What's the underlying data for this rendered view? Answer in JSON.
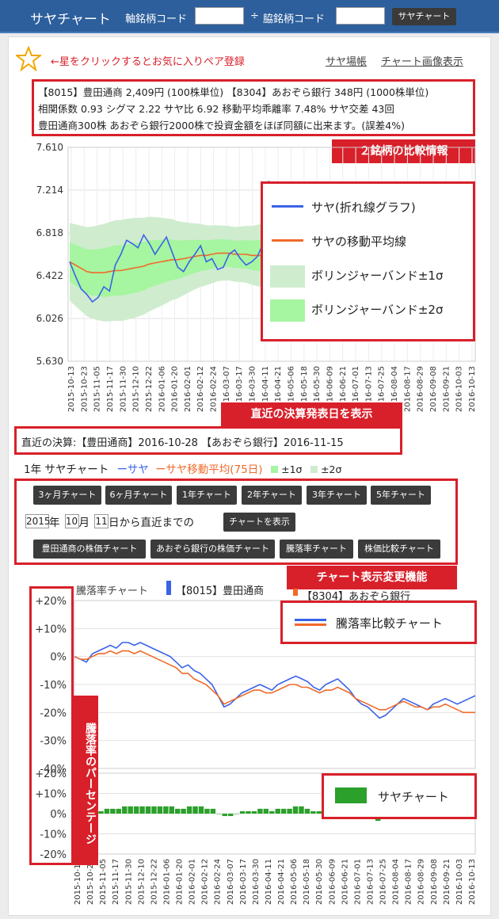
{
  "header": {
    "title": "サヤチャート",
    "base_label": "軸銘柄コード",
    "divider": "÷",
    "side_label": "脇銘柄コード",
    "submit": "サヤチャート"
  },
  "favorite": {
    "text": "←星をクリックするとお気に入りペア登録"
  },
  "links": {
    "ledger": "サヤ場帳",
    "image": "チャート画像表示"
  },
  "info": {
    "line1": "【8015】豊田通商 2,409円 (100株単位) 【8304】あおぞら銀行 348円 (1000株単位)",
    "line2": "相関係数 0.93 シグマ 2.22 サヤ比 6.92 移動平均乖離率 7.48% サヤ交差 43回",
    "line3": "豊田通商300株 あおぞら銀行2000株で投資金額をほぼ同額に出来ます。(誤差4%)",
    "label": "２銘柄の比較情報"
  },
  "main_chart": {
    "yticks": [
      "7.610",
      "7.214",
      "6.818",
      "6.422",
      "6.026",
      "5.630"
    ],
    "xticks": [
      "2015-10-13",
      "2015-10-23",
      "2015-11-05",
      "2015-11-17",
      "2015-11-30",
      "2015-12-10",
      "2015-12-22",
      "2016-01-06",
      "2016-01-20",
      "2016-02-01",
      "2016-02-12",
      "2016-02-24",
      "2016-03-07",
      "2016-03-17",
      "2016-03-30",
      "2016-04-11",
      "2016-04-21",
      "2016-05-06",
      "2016-05-18",
      "2016-05-30",
      "2016-06-09",
      "2016-06-21",
      "2016-07-01",
      "2016-07-13",
      "2016-07-25",
      "2016-08-04",
      "2016-08-17",
      "2016-08-29",
      "2016-09-08",
      "2016-09-21",
      "2016-10-03",
      "2016-10-13"
    ],
    "legend": [
      {
        "label": "サヤ(折れ線グラフ)",
        "color": "#3a63e6"
      },
      {
        "label": "サヤの移動平均線",
        "color": "#f06a2a"
      },
      {
        "label": "ボリンジャーバンド±1σ",
        "color": "#cfeccf"
      },
      {
        "label": "ボリンジャーバンド±2σ",
        "color": "#a6f5a0"
      }
    ]
  },
  "earnings": {
    "label": "直近の決算発表日を表示",
    "text": "直近の決算:【豊田通商】2016-10-28 【あおぞら銀行】2016-11-15"
  },
  "legend_line": {
    "period": "1年 サヤチャート",
    "saya": "ーサヤ",
    "ma": "ーサヤ移動平均(75日)",
    "s1": "±1σ",
    "s2": "±2σ"
  },
  "controls": {
    "period_buttons": [
      "3ヶ月チャート",
      "6ヶ月チャート",
      "1年チャート",
      "2年チャート",
      "3年チャート",
      "5年チャート"
    ],
    "year": "2015",
    "year_unit": "年",
    "month": "10",
    "month_unit": "月",
    "day": "11",
    "day_suffix": "日から直近までの",
    "show": "チャートを表示",
    "chart_buttons": [
      "豊田通商の株価チャート",
      "あおぞら銀行の株価チャート",
      "騰落率チャート",
      "株価比較チャート"
    ],
    "label": "チャート表示変更機能"
  },
  "rate_chart": {
    "title": "騰落率チャート",
    "series1": "【8015】豊田通商",
    "series2": "【8304】あおぞら銀行",
    "yticks": [
      "+20%",
      "+10%",
      "0%",
      "-10%",
      "-20%",
      "-30%",
      "-40%"
    ],
    "legend": "騰落率比較チャート",
    "side_label": "騰落率のパーセンテージ"
  },
  "saya_chart": {
    "yticks": [
      "+20%",
      "+10%",
      "0%",
      "-10%",
      "-20%"
    ],
    "legend": "サヤチャート",
    "xticks": [
      "2015-10-13",
      "2015-10-23",
      "2015-11-05",
      "2015-11-17",
      "2015-11-30",
      "2015-12-10",
      "2015-12-22",
      "2016-01-06",
      "2016-01-20",
      "2016-02-01",
      "2016-02-12",
      "2016-02-24",
      "2016-03-07",
      "2016-03-17",
      "2016-03-30",
      "2016-04-11",
      "2016-04-21",
      "2016-05-06",
      "2016-05-18",
      "2016-05-30",
      "2016-06-09",
      "2016-06-21",
      "2016-07-01",
      "2016-07-13",
      "2016-07-25",
      "2016-08-04",
      "2016-08-17",
      "2016-08-29",
      "2016-09-08",
      "2016-09-21",
      "2016-10-03",
      "2016-10-13"
    ]
  },
  "chart_data": [
    {
      "type": "line",
      "ylim": [
        5.63,
        7.61
      ],
      "series": [
        {
          "values": [
            6.55,
            6.42,
            6.3,
            6.25,
            6.18,
            6.22,
            6.32,
            6.28,
            6.52,
            6.62,
            6.75,
            6.72,
            6.68,
            6.8,
            6.72,
            6.62,
            6.7,
            6.78,
            6.64,
            6.5,
            6.46,
            6.55,
            6.62,
            6.7,
            6.55,
            6.58,
            6.48,
            6.5,
            6.62,
            6.66,
            6.58,
            6.52,
            6.55,
            6.6,
            6.72,
            7.3,
            6.75,
            6.68,
            6.6,
            6.52,
            6.45,
            6.35,
            6.3,
            6.42,
            6.5,
            6.55,
            6.62,
            6.6,
            6.58,
            6.62,
            6.58,
            6.55,
            6.6,
            6.62,
            6.56,
            6.55,
            6.5,
            6.6,
            6.62,
            6.65,
            6.72,
            6.7,
            6.66,
            6.6,
            6.56,
            6.7,
            6.75,
            6.68,
            6.6,
            6.62,
            6.7,
            6.8
          ]
        },
        {
          "values": [
            6.55,
            6.52,
            6.49,
            6.46,
            6.45,
            6.45,
            6.45,
            6.46,
            6.47,
            6.47,
            6.48,
            6.49,
            6.5,
            6.51,
            6.53,
            6.54,
            6.55,
            6.56,
            6.57,
            6.57,
            6.58,
            6.59,
            6.6,
            6.61,
            6.61,
            6.62,
            6.63,
            6.63,
            6.63,
            6.62,
            6.62,
            6.62,
            6.61,
            6.61,
            6.61,
            6.61,
            6.61,
            6.61,
            6.61,
            6.61,
            6.61,
            6.61,
            6.61,
            6.61,
            6.61,
            6.61,
            6.61,
            6.61,
            6.61,
            6.61,
            6.61,
            6.61,
            6.61,
            6.61,
            6.61,
            6.61,
            6.61,
            6.61,
            6.61,
            6.61,
            6.61,
            6.61,
            6.61,
            6.61,
            6.61,
            6.61,
            6.61,
            6.61,
            6.61,
            6.61,
            6.61,
            6.61
          ]
        }
      ]
    },
    {
      "type": "line",
      "ylim": [
        -40,
        20
      ],
      "series": [
        {
          "name": "【8015】豊田通商",
          "values": [
            0,
            -1,
            -2,
            1,
            2,
            3,
            4,
            3,
            5,
            5,
            4,
            5,
            4,
            3,
            2,
            1,
            0,
            -2,
            -4,
            -3,
            -5,
            -6,
            -8,
            -10,
            -14,
            -18,
            -17,
            -15,
            -13,
            -12,
            -11,
            -10,
            -11,
            -12,
            -10,
            -9,
            -8,
            -7,
            -8,
            -9,
            -11,
            -12,
            -10,
            -9,
            -8,
            -10,
            -12,
            -15,
            -17,
            -18,
            -20,
            -22,
            -21,
            -19,
            -17,
            -15,
            -16,
            -17,
            -18,
            -19,
            -17,
            -16,
            -15,
            -16,
            -17,
            -16,
            -15,
            -14
          ]
        },
        {
          "name": "【8304】あおぞら銀行",
          "values": [
            0,
            -1,
            -1,
            0,
            1,
            1,
            2,
            1,
            2,
            2,
            1,
            2,
            1,
            0,
            -1,
            -2,
            -3,
            -4,
            -6,
            -6,
            -8,
            -9,
            -10,
            -12,
            -14,
            -17,
            -16,
            -15,
            -14,
            -13,
            -12,
            -12,
            -13,
            -13,
            -12,
            -11,
            -10,
            -10,
            -11,
            -11,
            -12,
            -13,
            -12,
            -12,
            -11,
            -12,
            -13,
            -15,
            -16,
            -17,
            -18,
            -19,
            -19,
            -18,
            -17,
            -16,
            -17,
            -18,
            -18,
            -19,
            -18,
            -18,
            -17,
            -18,
            -19,
            -20,
            -20,
            -20
          ]
        }
      ]
    }
  ]
}
